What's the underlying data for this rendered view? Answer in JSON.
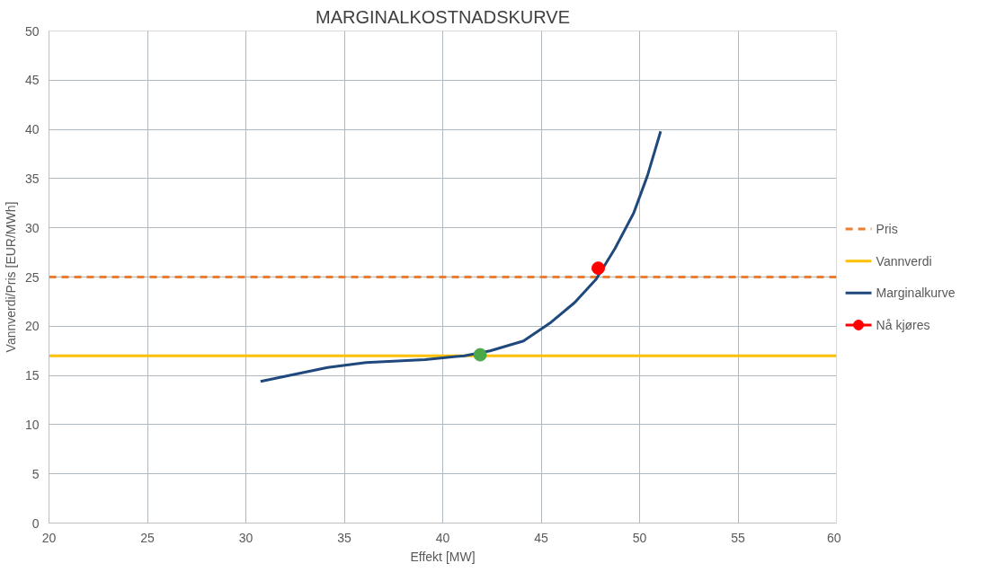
{
  "chart_data": {
    "type": "line",
    "title": "MARGINALKOSTNADSKURVE",
    "xlabel": "Effekt [MW]",
    "ylabel": "Vannverdi/Pris [EUR/MWh]",
    "xlim": [
      20,
      60
    ],
    "xticks": [
      20,
      25,
      30,
      35,
      40,
      45,
      50,
      55,
      60
    ],
    "ylim": [
      0,
      50
    ],
    "yticks": [
      0,
      5,
      10,
      15,
      20,
      25,
      30,
      35,
      40,
      45,
      50
    ],
    "grid": true,
    "legend": "right",
    "series": [
      {
        "name": "Pris",
        "color": "#ed7d31",
        "line_style": "dashed",
        "x": [
          20,
          60
        ],
        "values": [
          25,
          25
        ]
      },
      {
        "name": "Vannverdi",
        "color": "#ffc000",
        "line_style": "solid",
        "x": [
          20,
          60
        ],
        "values": [
          17,
          17
        ]
      },
      {
        "name": "Marginalkurve",
        "color": "#1f497d",
        "line_style": "solid",
        "x": [
          30.75,
          34.15,
          36.1,
          39.1,
          41.1,
          42.4,
          44.1,
          45.5,
          46.7,
          47.8,
          48.75,
          49.7,
          50.4,
          51.07
        ],
        "values": [
          14.4,
          15.8,
          16.3,
          16.6,
          17.0,
          17.5,
          18.5,
          20.4,
          22.4,
          24.8,
          27.9,
          31.5,
          35.3,
          39.8
        ]
      },
      {
        "name": "Nå kjøres",
        "type": "scatter",
        "marker": "circle",
        "color": "#ff0000",
        "x": [
          47.9
        ],
        "values": [
          25.9
        ]
      },
      {
        "type": "scatter",
        "marker": "circle",
        "color": "#4aa84a",
        "x": [
          41.9
        ],
        "values": [
          17.1
        ]
      }
    ]
  }
}
